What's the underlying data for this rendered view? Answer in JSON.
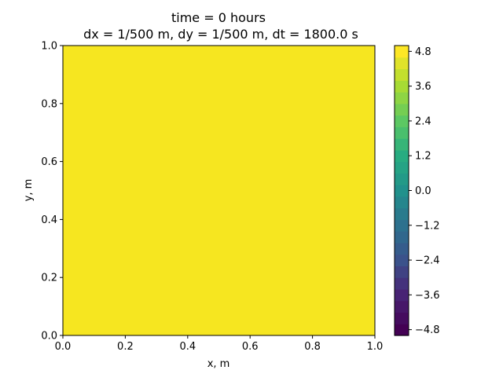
{
  "chart_data": {
    "type": "heatmap",
    "title": "time = 0 hours",
    "subtitle": "dx = 1/500 m, dy = 1/500 m, dt = 1800.0 s",
    "xlabel": "x, m",
    "ylabel": "y, m",
    "xlim": [
      0.0,
      1.0
    ],
    "ylim": [
      0.0,
      1.0
    ],
    "x_ticks": [
      "0.0",
      "0.2",
      "0.4",
      "0.6",
      "0.8",
      "1.0"
    ],
    "y_ticks": [
      "0.0",
      "0.2",
      "0.4",
      "0.6",
      "0.8",
      "1.0"
    ],
    "field_value": 5.0,
    "field_color": "#f6e620",
    "colorbar": {
      "colormap": "viridis",
      "range": [
        -5.0,
        5.0
      ],
      "levels": 25,
      "ticks": [
        "4.8",
        "3.6",
        "2.4",
        "1.2",
        "0.0",
        "−1.2",
        "−2.4",
        "−3.6",
        "−4.8"
      ],
      "tick_values": [
        4.8,
        3.6,
        2.4,
        1.2,
        0.0,
        -1.2,
        -2.4,
        -3.6,
        -4.8
      ]
    },
    "grid": false
  }
}
